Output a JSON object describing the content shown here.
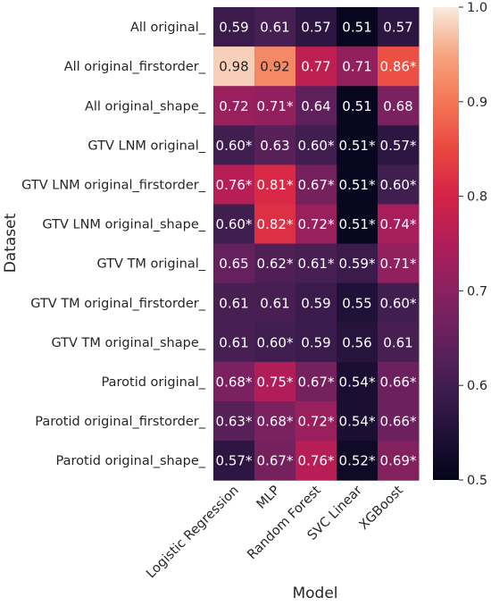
{
  "chart_data": {
    "type": "heatmap",
    "xlabel": "Model",
    "ylabel": "Dataset",
    "x_categories": [
      "Logistic Regression",
      "MLP",
      "Random Forest",
      "SVC Linear",
      "XGBoost"
    ],
    "y_categories": [
      "All original_",
      "All original_firstorder_",
      "All original_shape_",
      "GTV LNM original_",
      "GTV LNM original_firstorder_",
      "GTV LNM original_shape_",
      "GTV TM original_",
      "GTV TM original_firstorder_",
      "GTV TM original_shape_",
      "Parotid original_",
      "Parotid original_firstorder_",
      "Parotid original_shape_"
    ],
    "values": [
      [
        0.59,
        0.61,
        0.57,
        0.51,
        0.57
      ],
      [
        0.98,
        0.92,
        0.77,
        0.71,
        0.86
      ],
      [
        0.72,
        0.71,
        0.64,
        0.51,
        0.68
      ],
      [
        0.6,
        0.63,
        0.6,
        0.51,
        0.57
      ],
      [
        0.76,
        0.81,
        0.67,
        0.51,
        0.6
      ],
      [
        0.6,
        0.82,
        0.72,
        0.51,
        0.74
      ],
      [
        0.65,
        0.62,
        0.61,
        0.59,
        0.71
      ],
      [
        0.61,
        0.61,
        0.59,
        0.55,
        0.6
      ],
      [
        0.61,
        0.6,
        0.59,
        0.56,
        0.61
      ],
      [
        0.68,
        0.75,
        0.67,
        0.54,
        0.66
      ],
      [
        0.63,
        0.68,
        0.72,
        0.54,
        0.66
      ],
      [
        0.57,
        0.67,
        0.76,
        0.52,
        0.69
      ]
    ],
    "annotations": [
      [
        "0.59",
        "0.61",
        "0.57",
        "0.51",
        "0.57"
      ],
      [
        "0.98",
        "0.92",
        "0.77",
        "0.71",
        "0.86*"
      ],
      [
        "0.72",
        "0.71*",
        "0.64",
        "0.51",
        "0.68"
      ],
      [
        "0.60*",
        "0.63",
        "0.60*",
        "0.51*",
        "0.57*"
      ],
      [
        "0.76*",
        "0.81*",
        "0.67*",
        "0.51*",
        "0.60*"
      ],
      [
        "0.60*",
        "0.82*",
        "0.72*",
        "0.51*",
        "0.74*"
      ],
      [
        "0.65",
        "0.62*",
        "0.61*",
        "0.59*",
        "0.71*"
      ],
      [
        "0.61",
        "0.61",
        "0.59",
        "0.55",
        "0.60*"
      ],
      [
        "0.61",
        "0.60*",
        "0.59",
        "0.56",
        "0.61"
      ],
      [
        "0.68*",
        "0.75*",
        "0.67*",
        "0.54*",
        "0.66*"
      ],
      [
        "0.63*",
        "0.68*",
        "0.72*",
        "0.54*",
        "0.66*"
      ],
      [
        "0.57*",
        "0.67*",
        "0.76*",
        "0.52*",
        "0.69*"
      ]
    ],
    "colorbar": {
      "range": [
        0.5,
        1.0
      ],
      "ticks": [
        "0.5",
        "0.6",
        "0.7",
        "0.8",
        "0.9",
        "1.0"
      ],
      "colormap": "rocket"
    }
  }
}
